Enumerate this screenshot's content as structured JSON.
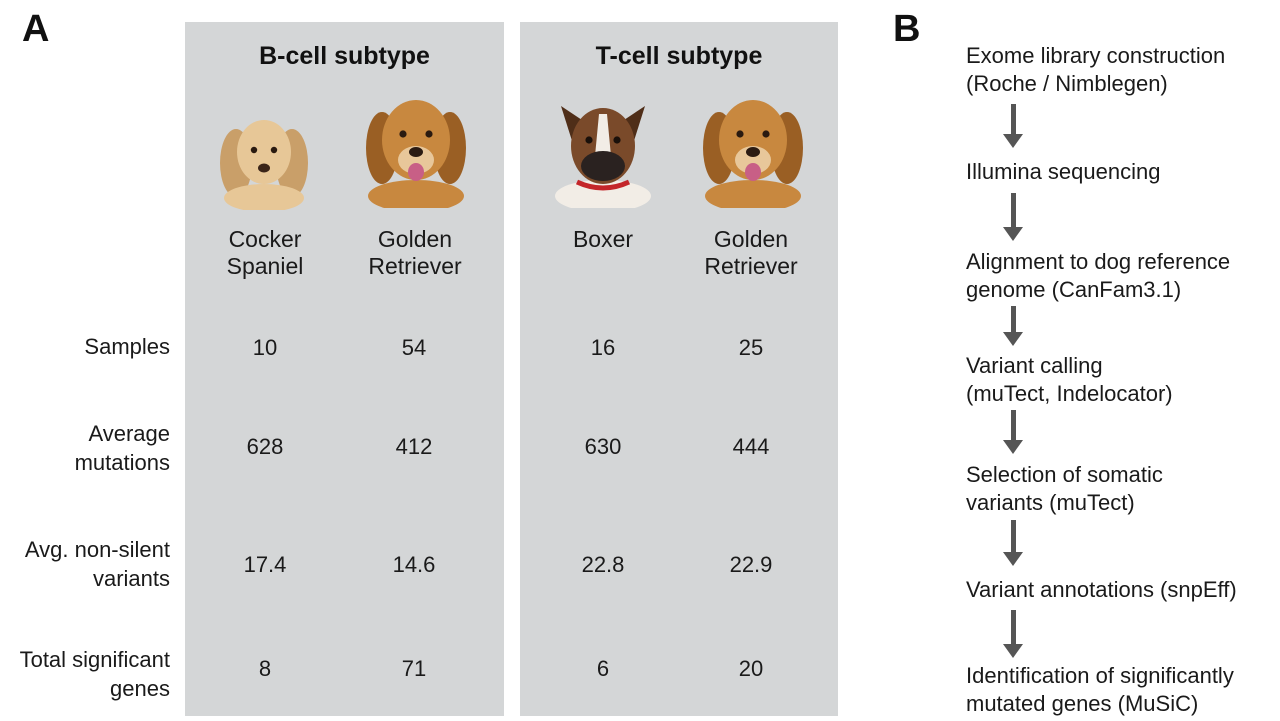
{
  "panel_a": {
    "letter": "A",
    "groups": [
      {
        "title": "B-cell subtype",
        "breeds": [
          {
            "name": "Cocker\nSpaniel",
            "coat": "#e7c797",
            "shade": "#c99f69"
          },
          {
            "name": "Golden\nRetriever",
            "coat": "#c8883f",
            "shade": "#9a5f24"
          }
        ]
      },
      {
        "title": "T-cell subtype",
        "breeds": [
          {
            "name": "Boxer",
            "coat": "#7a4a2a",
            "shade": "#4f2e18"
          },
          {
            "name": "Golden\nRetriever",
            "coat": "#c8883f",
            "shade": "#9a5f24"
          }
        ]
      }
    ],
    "rows": [
      {
        "label": "Samples",
        "values": [
          "10",
          "54",
          "16",
          "25"
        ]
      },
      {
        "label": "Average\nmutations",
        "values": [
          "628",
          "412",
          "630",
          "444"
        ]
      },
      {
        "label": "Avg. non-silent\nvariants",
        "values": [
          "17.4",
          "14.6",
          "22.8",
          "22.9"
        ]
      },
      {
        "label": "Total significant\ngenes",
        "values": [
          "8",
          "71",
          "6",
          "20"
        ]
      }
    ]
  },
  "panel_b": {
    "letter": "B",
    "steps": [
      "Exome library construction\n(Roche / Nimblegen)",
      "Illumina sequencing",
      "Alignment to dog reference\ngenome (CanFam3.1)",
      "Variant calling\n(muTect, Indelocator)",
      "Selection of somatic\nvariants (muTect)",
      "Variant annotations (snpEff)",
      "Identification of significantly\nmutated genes (MuSiC)"
    ]
  }
}
